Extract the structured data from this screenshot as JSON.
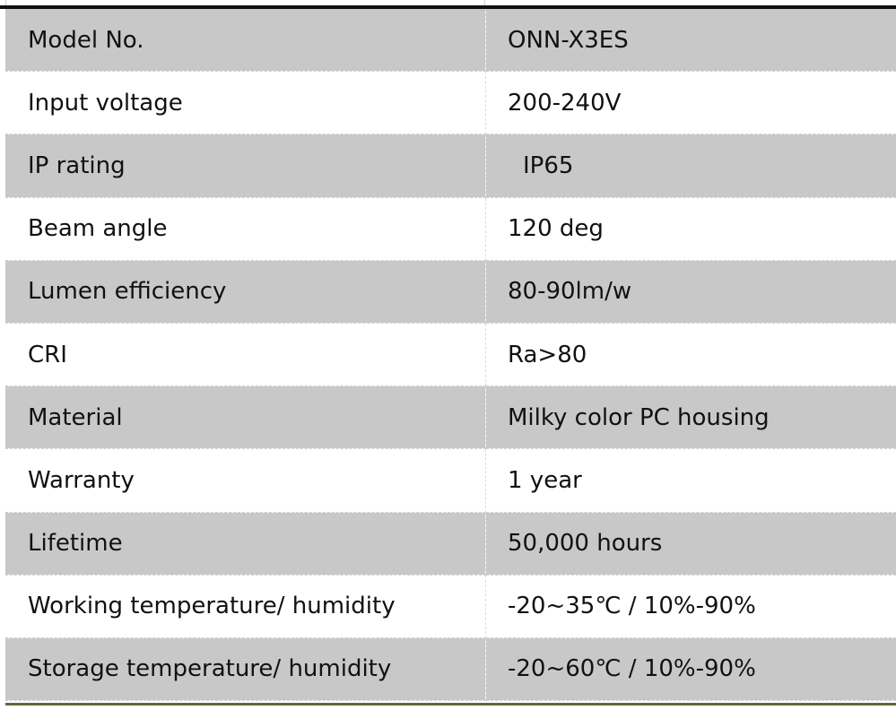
{
  "spec_table": {
    "rows": [
      {
        "label": "Model No.",
        "value": "ONN-X3ES"
      },
      {
        "label": "Input voltage",
        "value": "200-240V"
      },
      {
        "label": "IP rating",
        "value": "IP65"
      },
      {
        "label": "Beam angle",
        "value": "120 deg"
      },
      {
        "label": "Lumen efficiency",
        "value": "80-90lm/w"
      },
      {
        "label": "CRI",
        "value": "Ra>80"
      },
      {
        "label": "Material",
        "value": "Milky color PC housing"
      },
      {
        "label": "Warranty",
        "value": "1 year"
      },
      {
        "label": "Lifetime",
        "value": "50,000 hours"
      },
      {
        "label": "Working temperature/ humidity",
        "value": "-20~35℃ / 10%-90%"
      },
      {
        "label": "Storage temperature/ humidity",
        "value": "-20~60℃ / 10%-90%"
      }
    ]
  },
  "colors": {
    "shaded_row": "#c8c8c8",
    "plain_row": "#ffffff",
    "top_border": "#111111",
    "bottom_border": "#5a6b3c"
  }
}
